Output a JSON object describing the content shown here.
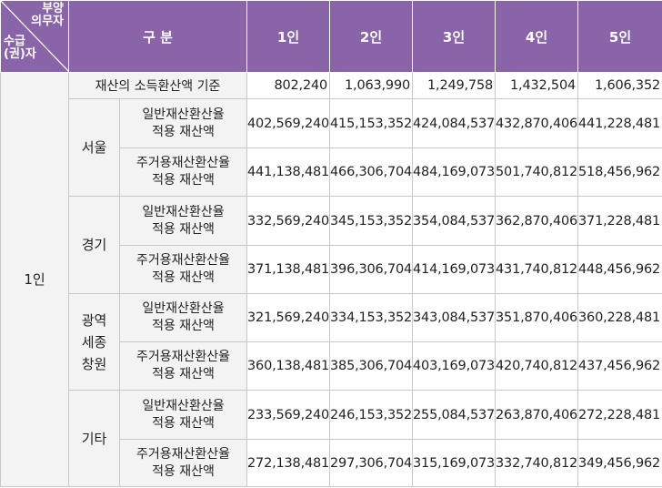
{
  "header": {
    "top_right_label": [
      "부양",
      "의무자"
    ],
    "bottom_left_label": [
      "수급",
      "(권)자"
    ],
    "category_label": "구 분",
    "columns": [
      "1인",
      "2인",
      "3인",
      "4인",
      "5인"
    ]
  },
  "group_label": "1인",
  "base_row": {
    "label": "재산의 소득환산액 기준",
    "values": [
      "802,240",
      "1,063,990",
      "1,249,758",
      "1,432,504",
      "1,606,352"
    ]
  },
  "regions": [
    {
      "name": [
        "서울"
      ],
      "rows": [
        {
          "label": [
            "일반재산환산율",
            "적용 재산액"
          ],
          "values": [
            "402,569,240",
            "415,153,352",
            "424,084,537",
            "432,870,406",
            "441,228,481"
          ]
        },
        {
          "label": [
            "주거용재산환산율",
            "적용 재산액"
          ],
          "values": [
            "441,138,481",
            "466,306,704",
            "484,169,073",
            "501,740,812",
            "518,456,962"
          ]
        }
      ]
    },
    {
      "name": [
        "경기"
      ],
      "rows": [
        {
          "label": [
            "일반재산환산율",
            "적용 재산액"
          ],
          "values": [
            "332,569,240",
            "345,153,352",
            "354,084,537",
            "362,870,406",
            "371,228,481"
          ]
        },
        {
          "label": [
            "주거용재산환산율",
            "적용 재산액"
          ],
          "values": [
            "371,138,481",
            "396,306,704",
            "414,169,073",
            "431,740,812",
            "448,456,962"
          ]
        }
      ]
    },
    {
      "name": [
        "광역",
        "세종",
        "창원"
      ],
      "rows": [
        {
          "label": [
            "일반재산환산율",
            "적용 재산액"
          ],
          "values": [
            "321,569,240",
            "334,153,352",
            "343,084,537",
            "351,870,406",
            "360,228,481"
          ]
        },
        {
          "label": [
            "주거용재산환산율",
            "적용 재산액"
          ],
          "values": [
            "360,138,481",
            "385,306,704",
            "403,169,073",
            "420,740,812",
            "437,456,962"
          ]
        }
      ]
    },
    {
      "name": [
        "기타"
      ],
      "rows": [
        {
          "label": [
            "일반재산환산율",
            "적용 재산액"
          ],
          "values": [
            "233,569,240",
            "246,153,352",
            "255,084,537",
            "263,870,406",
            "272,228,481"
          ]
        },
        {
          "label": [
            "주거용재산환산율",
            "적용 재산액"
          ],
          "values": [
            "272,138,481",
            "297,306,704",
            "315,169,073",
            "332,740,812",
            "349,456,962"
          ]
        }
      ]
    }
  ]
}
